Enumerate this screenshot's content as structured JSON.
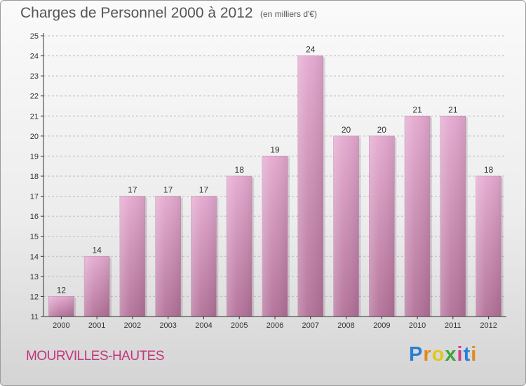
{
  "header": {
    "title": "Charges de Personnel 2000 à 2012",
    "unit_note": "(en milliers d'€)"
  },
  "footer": {
    "commune": "MOURVILLES-HAUTES",
    "brand_letters": [
      "P",
      "r",
      "o",
      "x",
      "i",
      "t",
      "i"
    ],
    "brand_colors": [
      "#2a7fd4",
      "#e08a1c",
      "#e0c81c",
      "#3aa63a",
      "#d23a8c",
      "#2a7fd4",
      "#e08a1c"
    ]
  },
  "colors": {
    "bar_fill_top": "#e4a9cf",
    "bar_fill_bottom": "#b27098",
    "axis": "#333333",
    "grid": "#bbbbbb",
    "label": "#333333"
  },
  "chart_data": {
    "type": "bar",
    "categories": [
      "2000",
      "2001",
      "2002",
      "2003",
      "2004",
      "2005",
      "2006",
      "2007",
      "2008",
      "2009",
      "2010",
      "2011",
      "2012"
    ],
    "values": [
      12,
      14,
      17,
      17,
      17,
      18,
      19,
      24,
      20,
      20,
      21,
      21,
      18
    ],
    "value_labels": [
      "12",
      "14",
      "17",
      "17",
      "17",
      "18",
      "19",
      "24",
      "20",
      "20",
      "21",
      "21",
      "18"
    ],
    "yticks": [
      "11",
      "12",
      "13",
      "14",
      "15",
      "16",
      "17",
      "18",
      "19",
      "20",
      "21",
      "22",
      "23",
      "24",
      "25"
    ],
    "ylim": [
      11,
      25
    ],
    "grid": true,
    "xlabel": "",
    "ylabel": ""
  }
}
